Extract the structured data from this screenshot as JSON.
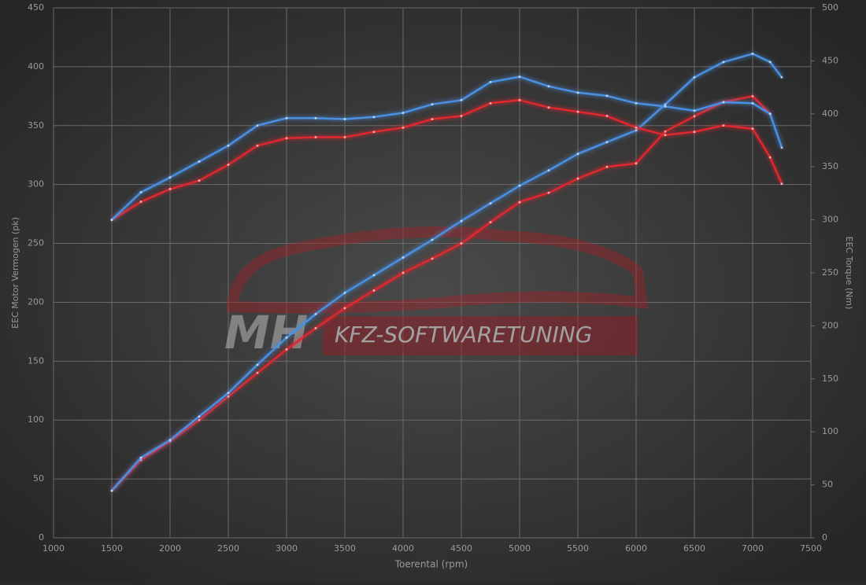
{
  "chart_data": {
    "type": "line",
    "xlabel": "Toerental (rpm)",
    "ylabel": "EEC Motor Vermogen (pk)",
    "y2label": "EEC Torque (Nm)",
    "watermark": [
      "MH",
      "KFZ-SOFTWARETUNING"
    ],
    "xlim": [
      1000,
      7500
    ],
    "xticks": [
      1000,
      1500,
      2000,
      2500,
      3000,
      3500,
      4000,
      4500,
      5000,
      5500,
      6000,
      6500,
      7000,
      7500
    ],
    "ylim": [
      0,
      450
    ],
    "yticks": [
      0,
      50,
      100,
      150,
      200,
      250,
      300,
      350,
      400,
      450
    ],
    "y2lim": [
      0,
      500
    ],
    "y2ticks": [
      0,
      50,
      100,
      150,
      200,
      250,
      300,
      350,
      400,
      450,
      500
    ],
    "grid": true,
    "x": [
      1500,
      1750,
      2000,
      2250,
      2500,
      2750,
      3000,
      3250,
      3500,
      3750,
      4000,
      4250,
      4500,
      4750,
      5000,
      5250,
      5500,
      5750,
      6000,
      6250,
      6500,
      6750,
      7000,
      7150,
      7250
    ],
    "series": [
      {
        "color": "#e0282f",
        "values": [
          40,
          66,
          82,
          100,
          120,
          140,
          160,
          178,
          195,
          210,
          225,
          237,
          250,
          268,
          285,
          293,
          305,
          315,
          318,
          345,
          358,
          370,
          375,
          360,
          null
        ]
      },
      {
        "color": "#4a90e2",
        "values": [
          40,
          68,
          83,
          103,
          123,
          147,
          170,
          190,
          208,
          223,
          238,
          253,
          269,
          284,
          299,
          312,
          326,
          336,
          346,
          368,
          391,
          404,
          411,
          404,
          391
        ]
      },
      {
        "color": "#e0282f",
        "axis": "y2",
        "values": [
          300,
          317,
          329,
          337,
          352,
          370,
          377,
          378,
          378,
          383,
          387,
          395,
          398,
          410,
          413,
          406,
          402,
          398,
          387,
          380,
          383,
          389,
          386,
          359,
          334
        ]
      },
      {
        "color": "#4a90e2",
        "axis": "y2",
        "values": [
          300,
          326,
          340,
          355,
          370,
          389,
          396,
          396,
          395,
          397,
          401,
          409,
          413,
          430,
          435,
          426,
          420,
          417,
          410,
          407,
          403,
          411,
          410,
          400,
          368
        ]
      }
    ]
  }
}
